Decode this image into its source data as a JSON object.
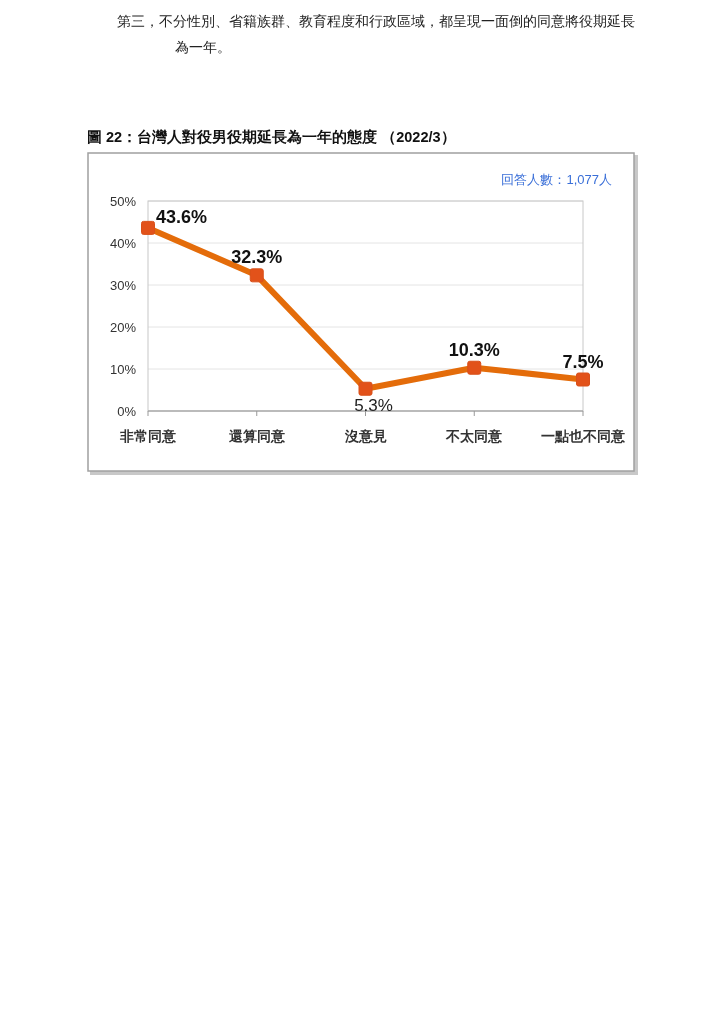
{
  "chart_data": {
    "type": "line",
    "title": "圖 22：台灣人對役男役期延長為一年的態度 （2022/3）",
    "annotations": [
      "第三，不分性別、省籍族群、教育程度和行政區域，都呈現一面倒的同意將役期延長為一年。",
      "回答人數：1,077人"
    ],
    "categories": [
      "非常同意",
      "還算同意",
      "沒意見",
      "不太同意",
      "一點也不同意"
    ],
    "series": [
      {
        "color": "#e46c0a",
        "values": [
          43.6,
          32.3,
          5.3,
          10.3,
          7.5
        ],
        "value_labels": [
          "43.6%",
          "32.3%",
          "5.3%",
          "10.3%",
          "7.5%"
        ]
      }
    ],
    "ylim": [
      0,
      50
    ],
    "yticks": [
      {
        "value": 0,
        "label": "0%"
      },
      {
        "value": 10,
        "label": "10%"
      },
      {
        "value": 20,
        "label": "20%"
      },
      {
        "value": 30,
        "label": "30%"
      },
      {
        "value": 40,
        "label": "40%"
      },
      {
        "value": 50,
        "label": "50%"
      }
    ],
    "grid": "y",
    "marker": "square",
    "line_style": "solid"
  }
}
